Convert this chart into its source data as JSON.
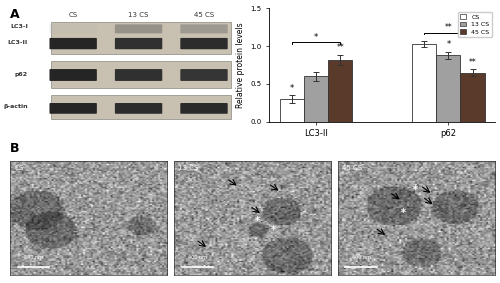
{
  "panel_A_label": "A",
  "panel_B_label": "B",
  "western_blot": {
    "col_labels": [
      "CS",
      "13 CS",
      "45 CS"
    ],
    "row_labels": [
      "LC3-I",
      "LC3-II",
      "p62",
      "β-actin"
    ],
    "bg_color": "#d0c8b8",
    "band_colors": {
      "LC3-I_CS": "#999999",
      "LC3-I_13CS": "#333333",
      "LC3-I_45CS": "#333333",
      "LC3-II_CS": "#111111",
      "LC3-II_13CS": "#111111",
      "LC3-II_45CS": "#111111",
      "p62_CS": "#111111",
      "p62_13CS": "#111111",
      "p62_45CS": "#111111",
      "bactin_CS": "#111111",
      "bactin_13CS": "#111111",
      "bactin_45CS": "#111111"
    }
  },
  "bar_chart": {
    "groups": [
      "LC3-II",
      "p62"
    ],
    "series": [
      "CS",
      "13 CS",
      "45 CS"
    ],
    "values": {
      "LC3-II": [
        0.3,
        0.6,
        0.82
      ],
      "p62": [
        1.03,
        0.88,
        0.65
      ]
    },
    "errors": {
      "LC3-II": [
        0.05,
        0.06,
        0.07
      ],
      "p62": [
        0.04,
        0.05,
        0.05
      ]
    },
    "bar_colors": [
      "#ffffff",
      "#a0a0a0",
      "#5a3a2a"
    ],
    "bar_edge_color": "#333333",
    "ylim": [
      0.0,
      1.5
    ],
    "yticks": [
      0.0,
      0.5,
      1.0,
      1.5
    ],
    "ylabel": "Relative protein levels",
    "significance": {
      "LC3-II_CS": "*",
      "LC3-II_13CS": "**",
      "LC3-II_45CS": "**",
      "p62_CS_vs_13CS": "*",
      "p62_13CS": "*",
      "p62_45CS": "**",
      "LC3-II_bracket": "*",
      "p62_bracket": "**"
    }
  },
  "tem_images": {
    "labels": [
      "CS",
      "13 CS",
      "45 CS"
    ],
    "scale_bar": "400 nm",
    "bg_colors": [
      "#a8a8a0",
      "#b0b0a8",
      "#a8a8a0"
    ]
  },
  "legend": {
    "labels": [
      "CS",
      "13 CS",
      "45 CS"
    ],
    "colors": [
      "#ffffff",
      "#a0a0a0",
      "#5a3a2a"
    ],
    "edge_color": "#333333"
  }
}
